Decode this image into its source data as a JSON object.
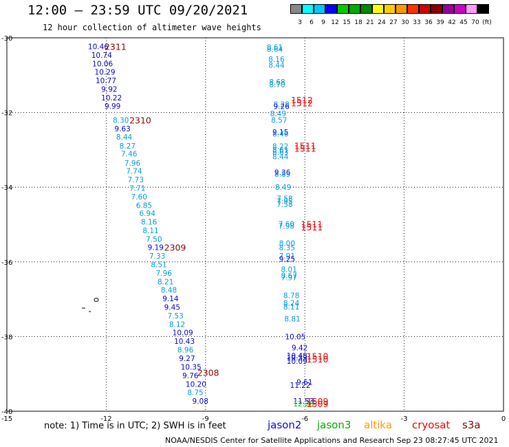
{
  "header": {
    "title": "12:00 – 23:59 UTC 09/20/2021",
    "subtitle": "12 hour collection of altimeter wave heights"
  },
  "colorbar": {
    "colors": [
      "#888888",
      "#00ffff",
      "#00c8ff",
      "#0000ff",
      "#00cc00",
      "#00aa00",
      "#008800",
      "#ffff00",
      "#ffcc00",
      "#ff9900",
      "#ff3300",
      "#cc0000",
      "#880000",
      "#990099",
      "#cc00cc",
      "#ff99ff",
      "#000000"
    ],
    "labels": [
      "3",
      "6",
      "9",
      "12",
      "15",
      "18",
      "21",
      "24",
      "27",
      "30",
      "33",
      "36",
      "39",
      "42",
      "45",
      "70",
      "(ft)"
    ]
  },
  "axes": {
    "x_ticks": [
      "-15",
      "-12",
      "-9",
      "-6",
      "-3",
      "0"
    ],
    "y_ticks": [
      "-30",
      "-32",
      "-34",
      "-36",
      "-38",
      "-40"
    ],
    "lon_range": [
      -15,
      0
    ],
    "lat_range": [
      -40,
      -30
    ]
  },
  "tracks": [
    {
      "name": "west",
      "points": [
        {
          "lat": -30.23,
          "lon": -12.55,
          "v": "10.46",
          "c": "#0000cc"
        },
        {
          "lat": -30.46,
          "lon": -12.45,
          "v": "10.74",
          "c": "#0000cc"
        },
        {
          "lat": -30.69,
          "lon": -12.42,
          "v": "10.06",
          "c": "#0000cc"
        },
        {
          "lat": -30.91,
          "lon": -12.35,
          "v": "10.29",
          "c": "#0000cc"
        },
        {
          "lat": -31.14,
          "lon": -12.32,
          "v": "10.77",
          "c": "#0000cc"
        },
        {
          "lat": -31.37,
          "lon": -12.15,
          "v": "9.92",
          "c": "#0000cc"
        },
        {
          "lat": -31.6,
          "lon": -12.15,
          "v": "10.22",
          "c": "#0000cc"
        },
        {
          "lat": -31.82,
          "lon": -12.05,
          "v": "9.99",
          "c": "#0000cc"
        },
        {
          "lat": -32.2,
          "lon": -11.8,
          "v": "8.30",
          "c": "#0099dd"
        },
        {
          "lat": -32.43,
          "lon": -11.75,
          "v": "9.63",
          "c": "#0000cc"
        },
        {
          "lat": -32.65,
          "lon": -11.7,
          "v": "8.44",
          "c": "#0099dd"
        },
        {
          "lat": -32.89,
          "lon": -11.6,
          "v": "8.27",
          "c": "#0099dd"
        },
        {
          "lat": -33.1,
          "lon": -11.55,
          "v": "7.46",
          "c": "#0099dd"
        },
        {
          "lat": -33.35,
          "lon": -11.45,
          "v": "7.96",
          "c": "#0099dd"
        },
        {
          "lat": -33.56,
          "lon": -11.4,
          "v": "7.74",
          "c": "#0099dd"
        },
        {
          "lat": -33.79,
          "lon": -11.35,
          "v": "7.73",
          "c": "#0099dd"
        },
        {
          "lat": -34.02,
          "lon": -11.3,
          "v": "7.71",
          "c": "#0099dd"
        },
        {
          "lat": -34.25,
          "lon": -11.25,
          "v": "7.60",
          "c": "#0099dd"
        },
        {
          "lat": -34.48,
          "lon": -11.1,
          "v": "6.85",
          "c": "#0099dd"
        },
        {
          "lat": -34.7,
          "lon": -11.0,
          "v": "6.94",
          "c": "#0099dd"
        },
        {
          "lat": -34.93,
          "lon": -10.95,
          "v": "8.16",
          "c": "#0099dd"
        },
        {
          "lat": -35.16,
          "lon": -10.9,
          "v": "8.11",
          "c": "#0099dd"
        },
        {
          "lat": -35.39,
          "lon": -10.8,
          "v": "7.50",
          "c": "#0099dd"
        },
        {
          "lat": -35.61,
          "lon": -10.75,
          "v": "9.19",
          "c": "#0000cc"
        },
        {
          "lat": -35.84,
          "lon": -10.7,
          "v": "7.33",
          "c": "#0099dd"
        },
        {
          "lat": -36.07,
          "lon": -10.65,
          "v": "8.51",
          "c": "#0099dd"
        },
        {
          "lat": -36.3,
          "lon": -10.5,
          "v": "7.96",
          "c": "#0099dd"
        },
        {
          "lat": -36.53,
          "lon": -10.45,
          "v": "8.21",
          "c": "#0099dd"
        },
        {
          "lat": -36.75,
          "lon": -10.35,
          "v": "8.48",
          "c": "#0099dd"
        },
        {
          "lat": -36.98,
          "lon": -10.3,
          "v": "9.14",
          "c": "#0000cc"
        },
        {
          "lat": -37.21,
          "lon": -10.25,
          "v": "9.45",
          "c": "#0000cc"
        },
        {
          "lat": -37.44,
          "lon": -10.15,
          "v": "7.53",
          "c": "#0099dd"
        },
        {
          "lat": -37.67,
          "lon": -10.1,
          "v": "8.12",
          "c": "#0099dd"
        },
        {
          "lat": -37.89,
          "lon": -10.0,
          "v": "10.09",
          "c": "#0000cc"
        },
        {
          "lat": -38.12,
          "lon": -9.95,
          "v": "10.43",
          "c": "#0000cc"
        },
        {
          "lat": -38.35,
          "lon": -9.85,
          "v": "8.96",
          "c": "#0099dd"
        },
        {
          "lat": -38.58,
          "lon": -9.8,
          "v": "9.27",
          "c": "#0000cc"
        },
        {
          "lat": -38.81,
          "lon": -9.75,
          "v": "10.35",
          "c": "#0000cc"
        },
        {
          "lat": -39.04,
          "lon": -9.7,
          "v": "9.76",
          "c": "#0000cc"
        },
        {
          "lat": -39.27,
          "lon": -9.6,
          "v": "10.20",
          "c": "#0000cc"
        },
        {
          "lat": -39.49,
          "lon": -9.55,
          "v": "8.75",
          "c": "#0099dd"
        },
        {
          "lat": -39.72,
          "lon": -9.4,
          "v": "9.08",
          "c": "#0000cc"
        }
      ]
    },
    {
      "name": "east",
      "points": [
        {
          "lat": -30.25,
          "lon": -7.15,
          "v": "8.61",
          "c": "#0099dd"
        },
        {
          "lat": -30.3,
          "lon": -7.15,
          "v": "8.64",
          "c": "#0099dd"
        },
        {
          "lat": -30.57,
          "lon": -7.1,
          "v": "8.16",
          "c": "#0099dd"
        },
        {
          "lat": -30.73,
          "lon": -7.1,
          "v": "8.44",
          "c": "#0099dd"
        },
        {
          "lat": -31.18,
          "lon": -7.08,
          "v": "8.68",
          "c": "#0099dd"
        },
        {
          "lat": -31.25,
          "lon": -7.08,
          "v": "8.70",
          "c": "#0099dd"
        },
        {
          "lat": -31.78,
          "lon": -6.95,
          "v": "8.28",
          "c": "#0099dd"
        },
        {
          "lat": -31.83,
          "lon": -6.95,
          "v": "9.26",
          "c": "#0000cc"
        },
        {
          "lat": -32.03,
          "lon": -7.05,
          "v": "8.49",
          "c": "#0099dd"
        },
        {
          "lat": -32.2,
          "lon": -7.02,
          "v": "8.57",
          "c": "#0099dd"
        },
        {
          "lat": -32.52,
          "lon": -6.98,
          "v": "9.15",
          "c": "#0000cc"
        },
        {
          "lat": -32.57,
          "lon": -6.98,
          "v": "8.46",
          "c": "#0099dd"
        },
        {
          "lat": -32.9,
          "lon": -6.98,
          "v": "8.22",
          "c": "#0099dd"
        },
        {
          "lat": -33.0,
          "lon": -6.98,
          "v": "8.61",
          "c": "#0099dd"
        },
        {
          "lat": -33.06,
          "lon": -6.98,
          "v": "8.63",
          "c": "#0099dd"
        },
        {
          "lat": -33.18,
          "lon": -6.98,
          "v": "8.44",
          "c": "#0099dd"
        },
        {
          "lat": -33.6,
          "lon": -6.92,
          "v": "9.36",
          "c": "#0000cc"
        },
        {
          "lat": -33.65,
          "lon": -6.92,
          "v": "8.85",
          "c": "#0099dd"
        },
        {
          "lat": -34.0,
          "lon": -6.9,
          "v": "8.49",
          "c": "#0099dd"
        },
        {
          "lat": -34.3,
          "lon": -6.85,
          "v": "7.58",
          "c": "#0099dd"
        },
        {
          "lat": -34.37,
          "lon": -6.85,
          "v": "7.95",
          "c": "#0099dd"
        },
        {
          "lat": -34.46,
          "lon": -6.85,
          "v": "7.58",
          "c": "#0099dd"
        },
        {
          "lat": -34.98,
          "lon": -6.8,
          "v": "7.60",
          "c": "#0099dd"
        },
        {
          "lat": -35.04,
          "lon": -6.8,
          "v": "7.98",
          "c": "#0099dd"
        },
        {
          "lat": -35.5,
          "lon": -6.78,
          "v": "8.00",
          "c": "#0099dd"
        },
        {
          "lat": -35.62,
          "lon": -6.78,
          "v": "8.35",
          "c": "#0099dd"
        },
        {
          "lat": -35.84,
          "lon": -6.78,
          "v": "7.91",
          "c": "#0099dd"
        },
        {
          "lat": -35.92,
          "lon": -6.78,
          "v": "9.25",
          "c": "#0000cc"
        },
        {
          "lat": -36.2,
          "lon": -6.72,
          "v": "8.01",
          "c": "#0099dd"
        },
        {
          "lat": -36.36,
          "lon": -6.72,
          "v": "8.67",
          "c": "#0099dd"
        },
        {
          "lat": -36.42,
          "lon": -6.72,
          "v": "7.97",
          "c": "#0099dd"
        },
        {
          "lat": -36.9,
          "lon": -6.65,
          "v": "8.78",
          "c": "#0099dd"
        },
        {
          "lat": -37.1,
          "lon": -6.65,
          "v": "8.24",
          "c": "#0099dd"
        },
        {
          "lat": -37.2,
          "lon": -6.65,
          "v": "8.11",
          "c": "#0099dd"
        },
        {
          "lat": -37.52,
          "lon": -6.62,
          "v": "8.81",
          "c": "#0099dd"
        },
        {
          "lat": -38.0,
          "lon": -6.6,
          "v": "10.05",
          "c": "#0000cc"
        },
        {
          "lat": -38.3,
          "lon": -6.4,
          "v": "9.42",
          "c": "#0000cc"
        },
        {
          "lat": -38.51,
          "lon": -6.55,
          "v": "10.48",
          "c": "#0000cc"
        },
        {
          "lat": -38.56,
          "lon": -6.55,
          "v": "10.33",
          "c": "#0000cc"
        },
        {
          "lat": -38.66,
          "lon": -6.55,
          "v": "10.09",
          "c": "#0000cc"
        },
        {
          "lat": -39.22,
          "lon": -6.25,
          "v": "9.61",
          "c": "#0000cc"
        },
        {
          "lat": -39.3,
          "lon": -6.45,
          "v": "11.22",
          "c": "#0000cc"
        },
        {
          "lat": -39.72,
          "lon": -6.35,
          "v": "11.53",
          "c": "#0000cc"
        },
        {
          "lat": -39.8,
          "lon": -6.35,
          "v": "12.28",
          "c": "#00cc00"
        }
      ]
    }
  ],
  "pass_labels": [
    {
      "lat": -30.23,
      "lon": -12.05,
      "t": "2311",
      "c": "#880000"
    },
    {
      "lat": -32.2,
      "lon": -11.3,
      "t": "2310",
      "c": "#880000"
    },
    {
      "lat": -35.61,
      "lon": -10.25,
      "t": "2309",
      "c": "#880000"
    },
    {
      "lat": -38.96,
      "lon": -9.25,
      "t": "2308",
      "c": "#880000"
    },
    {
      "lat": -31.66,
      "lon": -6.42,
      "t": "1512",
      "c": "#ee0000"
    },
    {
      "lat": -31.74,
      "lon": -6.42,
      "t": "1512",
      "c": "#ee0000"
    },
    {
      "lat": -32.88,
      "lon": -6.32,
      "t": "1511",
      "c": "#ee0000"
    },
    {
      "lat": -32.96,
      "lon": -6.32,
      "t": "1511",
      "c": "#ee0000"
    },
    {
      "lat": -34.98,
      "lon": -6.12,
      "t": "1511",
      "c": "#ee0000"
    },
    {
      "lat": -35.06,
      "lon": -6.12,
      "t": "1511",
      "c": "#ee0000"
    },
    {
      "lat": -38.52,
      "lon": -5.95,
      "t": "1510",
      "c": "#ee0000"
    },
    {
      "lat": -38.6,
      "lon": -5.95,
      "t": "1510",
      "c": "#ee0000"
    },
    {
      "lat": -39.72,
      "lon": -5.95,
      "t": "1509",
      "c": "#ee0000"
    },
    {
      "lat": -39.8,
      "lon": -5.95,
      "t": "1509",
      "c": "#ee0000"
    }
  ],
  "footer": {
    "note": "note: 1) Time is in UTC; 2) SWH is in feet",
    "legend": [
      {
        "label": "jason2",
        "color": "#0000ee"
      },
      {
        "label": "jason3",
        "color": "#00aa00"
      },
      {
        "label": "altika",
        "color": "#ff9900"
      },
      {
        "label": "cryosat",
        "color": "#ee0000"
      },
      {
        "label": "s3a",
        "color": "#880000"
      }
    ],
    "credit": "NOAA/NESDIS Center for Satellite Applications and Research   Sep 23 08:27:45 UTC 2021"
  }
}
